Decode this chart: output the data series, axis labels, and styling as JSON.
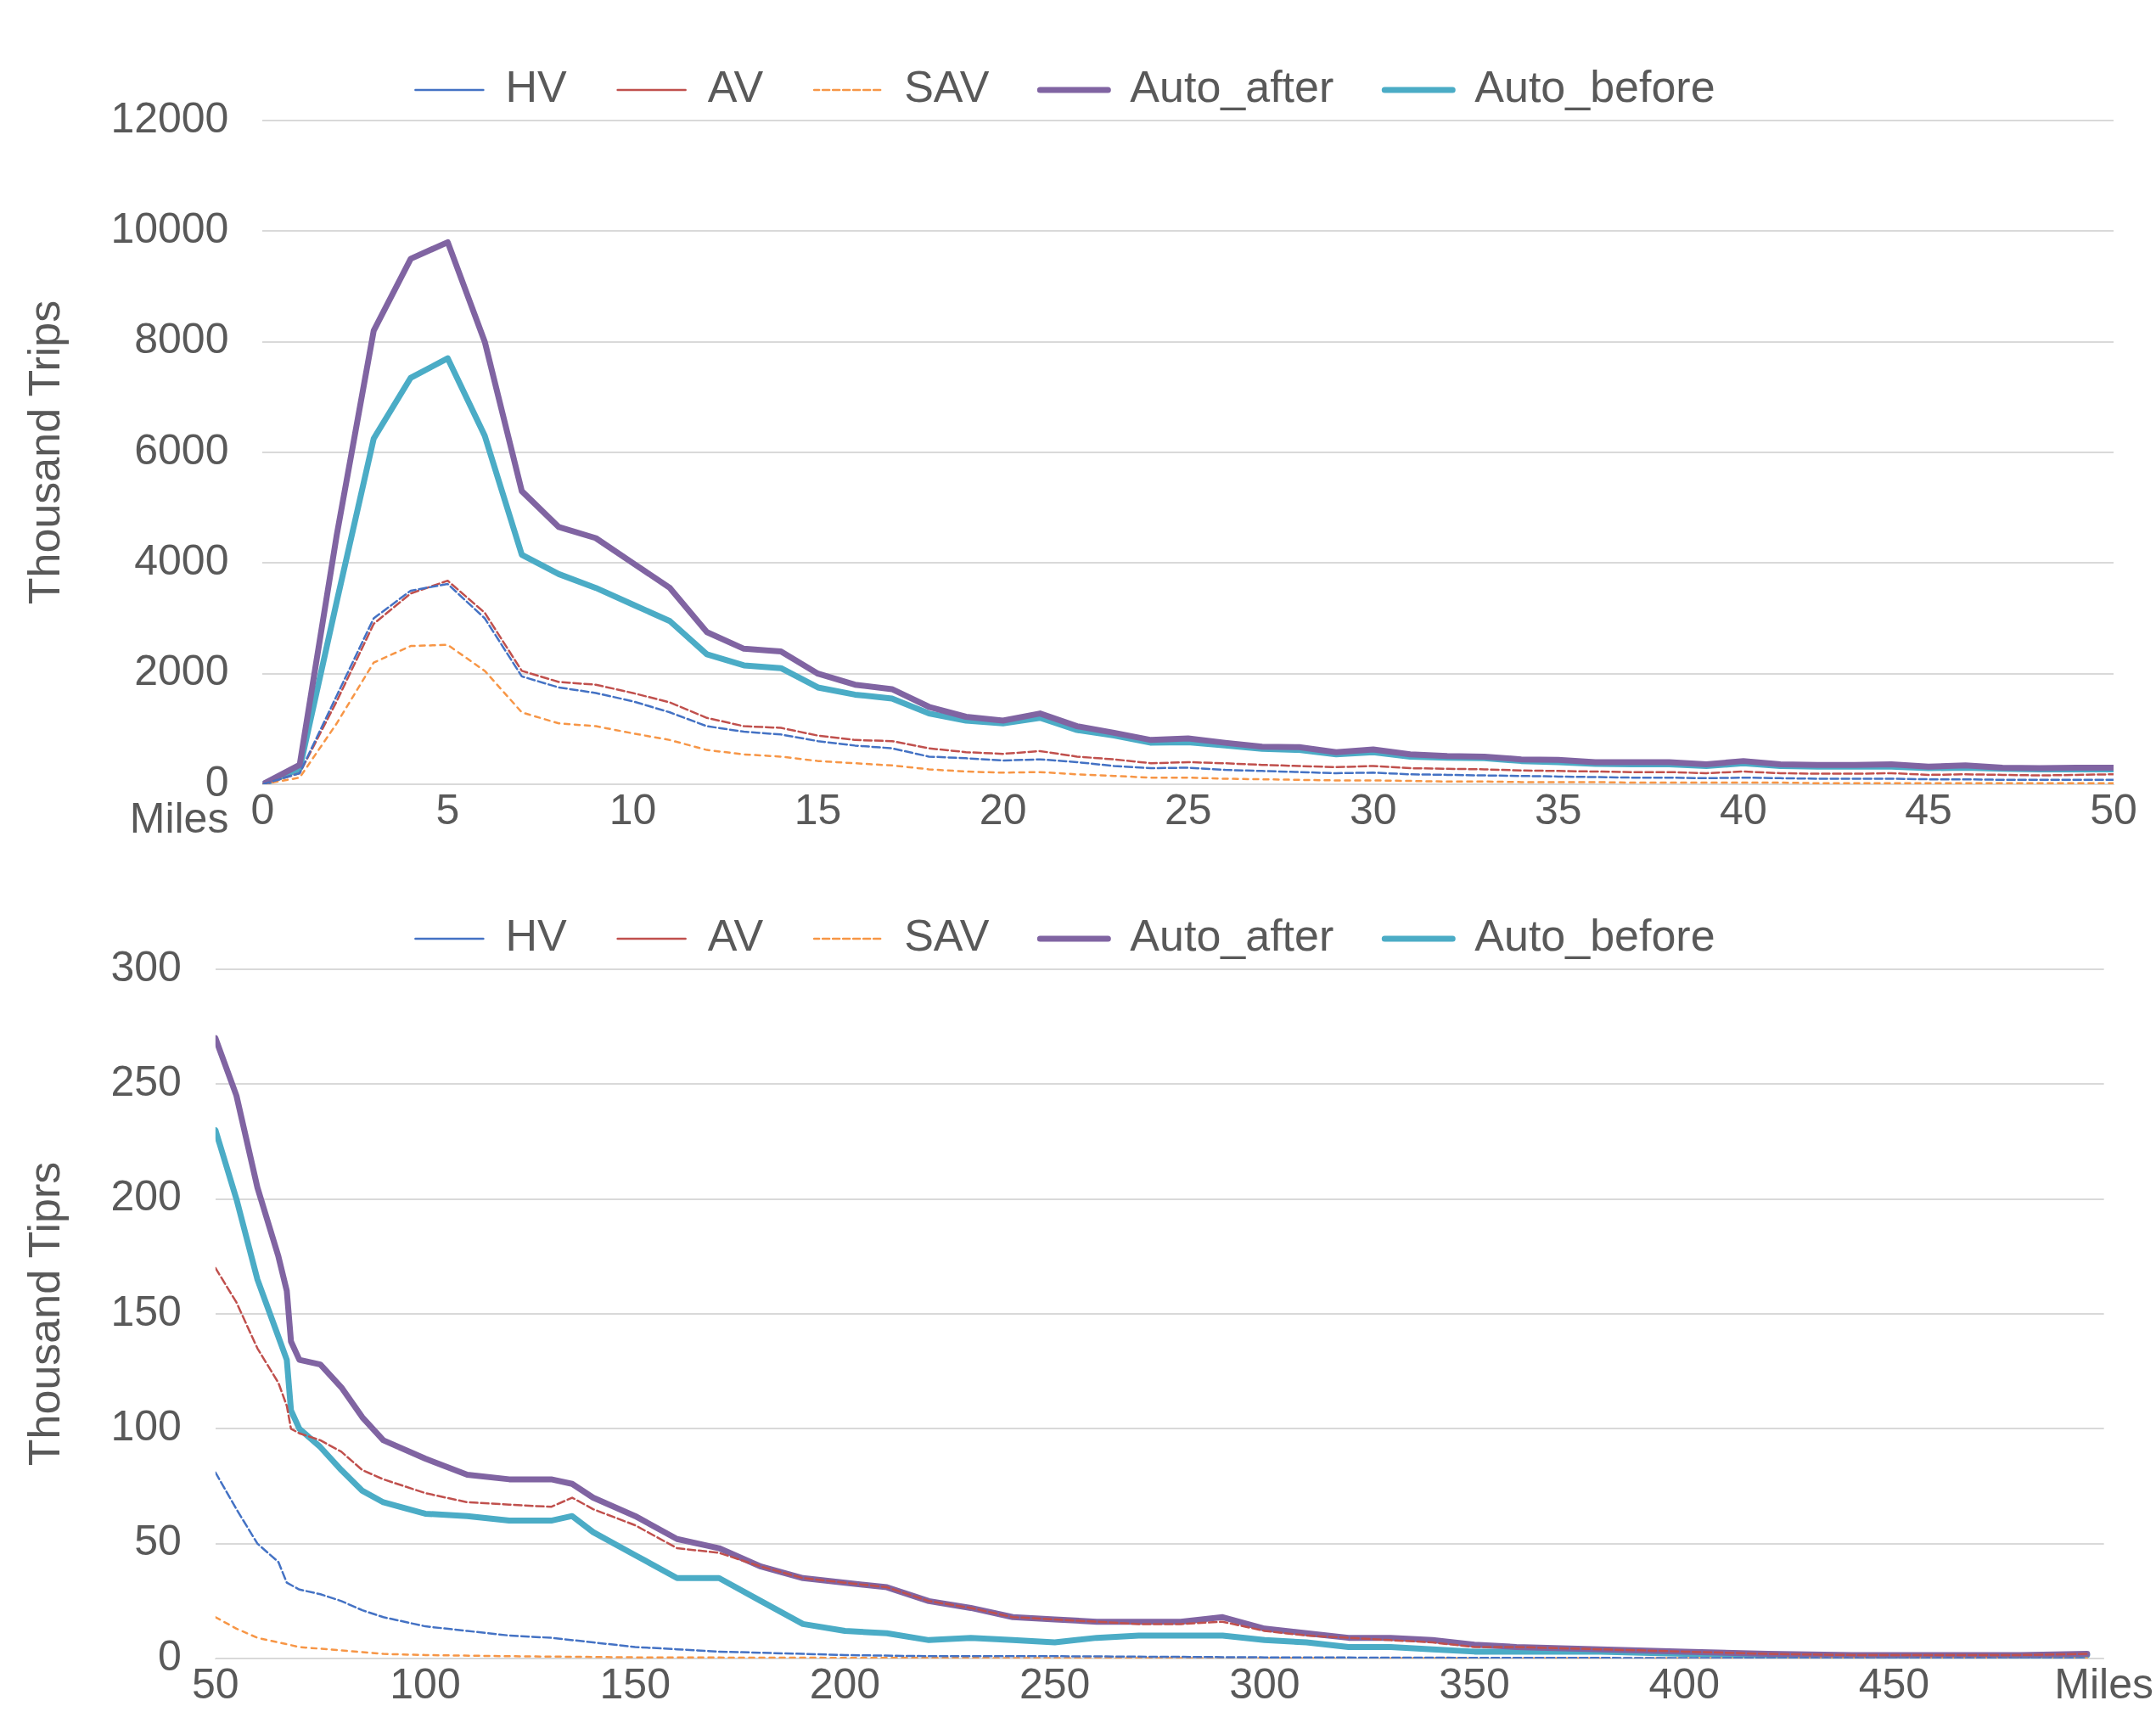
{
  "chart_data": [
    {
      "type": "line",
      "xlabel": "Miles",
      "ylabel": "Thousand Trips",
      "xlim": [
        0,
        50
      ],
      "xticks": [
        0,
        5,
        10,
        15,
        20,
        25,
        30,
        35,
        40,
        45,
        50
      ],
      "ylim": [
        0,
        12000
      ],
      "yticks": [
        0,
        2000,
        4000,
        6000,
        8000,
        10000,
        12000
      ],
      "grid": "y",
      "legend": "top",
      "x": [
        0,
        1,
        2,
        3,
        4,
        5,
        6,
        7,
        8,
        9,
        10,
        11,
        12,
        13,
        14,
        15,
        16,
        17,
        18,
        19,
        20,
        21,
        22,
        23,
        24,
        25,
        26,
        27,
        28,
        29,
        30,
        31,
        32,
        33,
        34,
        35,
        36,
        37,
        38,
        39,
        40,
        41,
        42,
        43,
        44,
        45,
        46,
        47,
        48,
        49,
        50
      ],
      "series": [
        {
          "name": "HV",
          "color": "#4472c4",
          "line_style": "dashed",
          "values": [
            0,
            200,
            1600,
            3000,
            3500,
            3620,
            3000,
            1950,
            1750,
            1650,
            1500,
            1300,
            1050,
            950,
            900,
            780,
            700,
            650,
            500,
            470,
            430,
            450,
            400,
            330,
            290,
            300,
            260,
            240,
            220,
            200,
            210,
            180,
            170,
            160,
            150,
            140,
            130,
            120,
            120,
            110,
            120,
            110,
            100,
            100,
            100,
            90,
            90,
            80,
            80,
            80,
            80
          ]
        },
        {
          "name": "AV",
          "color": "#c0504d",
          "line_style": "dashed",
          "values": [
            0,
            200,
            1500,
            2900,
            3450,
            3680,
            3100,
            2050,
            1850,
            1800,
            1650,
            1480,
            1200,
            1050,
            1020,
            880,
            800,
            780,
            650,
            580,
            550,
            600,
            500,
            450,
            380,
            400,
            380,
            350,
            330,
            310,
            330,
            290,
            280,
            270,
            250,
            240,
            230,
            220,
            220,
            200,
            230,
            200,
            190,
            190,
            200,
            170,
            180,
            170,
            160,
            170,
            180
          ]
        },
        {
          "name": "SAV",
          "color": "#f79646",
          "line_style": "dotted",
          "values": [
            0,
            120,
            1100,
            2200,
            2500,
            2520,
            2050,
            1300,
            1100,
            1050,
            920,
            800,
            620,
            540,
            500,
            420,
            380,
            340,
            270,
            230,
            210,
            220,
            180,
            150,
            120,
            120,
            100,
            90,
            80,
            70,
            70,
            60,
            50,
            50,
            40,
            40,
            40,
            30,
            30,
            30,
            30,
            30,
            20,
            20,
            20,
            20,
            20,
            20,
            20,
            20,
            20
          ]
        },
        {
          "name": "Auto_after",
          "color": "#8064a2",
          "line_style": "solid",
          "values": [
            0,
            350,
            4500,
            8200,
            9500,
            9800,
            8000,
            5300,
            4650,
            4450,
            4000,
            3550,
            2750,
            2450,
            2400,
            2000,
            1800,
            1720,
            1400,
            1220,
            1150,
            1280,
            1050,
            930,
            800,
            830,
            750,
            680,
            670,
            580,
            630,
            540,
            510,
            500,
            450,
            440,
            400,
            400,
            400,
            360,
            420,
            360,
            350,
            350,
            360,
            320,
            340,
            300,
            290,
            300,
            300
          ]
        },
        {
          "name": "Auto_before",
          "color": "#4bacc6",
          "line_style": "solid",
          "values": [
            0,
            280,
            3300,
            6250,
            7350,
            7700,
            6300,
            4150,
            3800,
            3550,
            3250,
            2950,
            2350,
            2150,
            2100,
            1750,
            1620,
            1550,
            1280,
            1150,
            1100,
            1200,
            980,
            880,
            750,
            760,
            700,
            640,
            620,
            540,
            580,
            500,
            480,
            470,
            420,
            400,
            370,
            360,
            360,
            330,
            380,
            330,
            320,
            320,
            320,
            290,
            300,
            280,
            270,
            270,
            270
          ]
        }
      ]
    },
    {
      "type": "line",
      "ylabel": "Thousand Tiprs",
      "xlim": [
        50,
        500
      ],
      "xticks": [
        50,
        100,
        150,
        200,
        250,
        300,
        350,
        400,
        450,
        {
          "value": 500,
          "label": "Miles"
        }
      ],
      "ylim": [
        0,
        300
      ],
      "yticks": [
        0,
        50,
        100,
        150,
        200,
        250,
        300
      ],
      "grid": "y",
      "legend": "top",
      "series": [
        {
          "name": "HV",
          "color": "#4472c4",
          "line_style": "dashed",
          "x": [
            50,
            55,
            60,
            65,
            67,
            70,
            75,
            80,
            85,
            90,
            100,
            110,
            120,
            130,
            140,
            150,
            160,
            170,
            180,
            190,
            200,
            220,
            250,
            300,
            350,
            400,
            450,
            496
          ],
          "values": [
            81,
            65,
            50,
            42,
            33,
            30,
            28,
            25,
            21,
            18,
            14,
            12,
            10,
            9,
            7,
            5,
            4,
            3,
            2.5,
            2,
            1.5,
            1,
            1,
            0.5,
            0.3,
            0.2,
            0.1,
            0.1
          ]
        },
        {
          "name": "AV",
          "color": "#c0504d",
          "line_style": "dashed",
          "x": [
            50,
            55,
            60,
            65,
            67,
            68,
            70,
            75,
            80,
            85,
            90,
            100,
            110,
            120,
            130,
            135,
            140,
            150,
            160,
            170,
            180,
            190,
            200,
            210,
            220,
            230,
            240,
            250,
            260,
            270,
            280,
            290,
            300,
            310,
            320,
            330,
            340,
            350,
            360,
            380,
            400,
            420,
            440,
            460,
            480,
            496
          ],
          "values": [
            170,
            155,
            135,
            120,
            110,
            100,
            98,
            95,
            90,
            82,
            78,
            72,
            68,
            67,
            66,
            70,
            65,
            58,
            48,
            46,
            40,
            35,
            33,
            31,
            25,
            22,
            18,
            17,
            16,
            15,
            15,
            16,
            12,
            10,
            9,
            8,
            7,
            5,
            5,
            4,
            3,
            2,
            1.5,
            1.5,
            1.5,
            2
          ]
        },
        {
          "name": "SAV",
          "color": "#f79646",
          "line_style": "dotted",
          "x": [
            50,
            55,
            60,
            65,
            70,
            80,
            90,
            100,
            120,
            150,
            200,
            300,
            400,
            496
          ],
          "values": [
            18,
            13,
            9,
            7,
            5,
            3.5,
            2,
            1.5,
            1,
            0.5,
            0.3,
            0.1,
            0.1,
            0.1
          ]
        },
        {
          "name": "Auto_after",
          "color": "#8064a2",
          "line_style": "solid",
          "x": [
            50,
            55,
            60,
            65,
            67,
            68,
            70,
            75,
            80,
            85,
            90,
            100,
            110,
            120,
            130,
            135,
            140,
            150,
            160,
            170,
            180,
            190,
            200,
            210,
            220,
            230,
            240,
            250,
            260,
            270,
            280,
            290,
            300,
            310,
            320,
            330,
            340,
            350,
            360,
            380,
            400,
            420,
            440,
            460,
            480,
            496
          ],
          "values": [
            270,
            245,
            205,
            175,
            160,
            138,
            130,
            128,
            118,
            105,
            95,
            87,
            80,
            78,
            78,
            76,
            70,
            62,
            52,
            48,
            40,
            35,
            33,
            31,
            25,
            22,
            18,
            17,
            16,
            16,
            16,
            18,
            13,
            11,
            9,
            9,
            8,
            6,
            5,
            4,
            3,
            2,
            1.5,
            1.5,
            1.5,
            2
          ]
        },
        {
          "name": "Auto_before",
          "color": "#4bacc6",
          "line_style": "solid",
          "x": [
            50,
            55,
            60,
            65,
            67,
            68,
            70,
            75,
            80,
            85,
            90,
            100,
            110,
            120,
            130,
            135,
            140,
            150,
            160,
            170,
            180,
            190,
            200,
            210,
            220,
            230,
            240,
            250,
            260,
            270,
            280,
            290,
            300,
            310,
            320,
            330,
            340,
            350,
            360,
            380,
            400,
            420,
            440,
            460,
            480,
            496
          ],
          "values": [
            230,
            200,
            165,
            140,
            130,
            108,
            100,
            92,
            82,
            73,
            68,
            63,
            62,
            60,
            60,
            62,
            55,
            45,
            35,
            35,
            25,
            15,
            12,
            11,
            8,
            9,
            8,
            7,
            9,
            10,
            10,
            10,
            8,
            7,
            5,
            5,
            4,
            3,
            3,
            3,
            2,
            1.5,
            1,
            1,
            1,
            1.5
          ]
        }
      ]
    }
  ]
}
